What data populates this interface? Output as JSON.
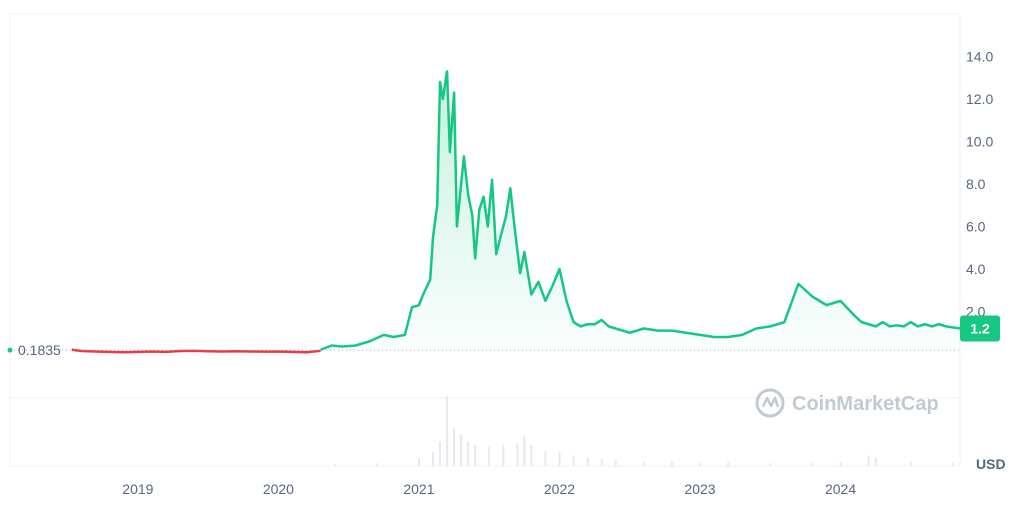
{
  "chart_data": {
    "type": "area",
    "currency": "USD",
    "baseline_label": "0.1835",
    "current_label": "1.2",
    "watermark": "CoinMarketCap",
    "ylim": [
      0,
      16
    ],
    "y_ticks": [
      "2.0",
      "4.0",
      "6.0",
      "8.0",
      "10.0",
      "12.0",
      "14.0"
    ],
    "y_tick_values": [
      2,
      4,
      6,
      8,
      10,
      12,
      14
    ],
    "x_ticks": [
      "2019",
      "2020",
      "2021",
      "2022",
      "2023",
      "2024"
    ],
    "x_tick_values": [
      2019,
      2020,
      2021,
      2022,
      2023,
      2024
    ],
    "xlim": [
      2018.09,
      2024.85
    ],
    "grid": true,
    "colors": {
      "up": "#16c784",
      "down": "#ea3943",
      "fill": "#16c784",
      "text": "#58667e",
      "grid": "#eff2f5",
      "volume": "#e6e9ee"
    },
    "series": [
      {
        "segment": "below-baseline",
        "x": [
          2018.53,
          2018.6,
          2018.7,
          2018.8,
          2018.9,
          2019.0,
          2019.1,
          2019.2,
          2019.3,
          2019.4,
          2019.5,
          2019.6,
          2019.7,
          2019.8,
          2019.9,
          2020.0,
          2020.1,
          2020.2,
          2020.3
        ],
        "values": [
          0.2,
          0.14,
          0.12,
          0.1,
          0.08,
          0.1,
          0.12,
          0.1,
          0.14,
          0.15,
          0.13,
          0.12,
          0.13,
          0.12,
          0.11,
          0.12,
          0.1,
          0.08,
          0.15
        ]
      },
      {
        "segment": "above-baseline",
        "x": [
          2020.3,
          2020.38,
          2020.45,
          2020.55,
          2020.65,
          2020.75,
          2020.82,
          2020.9,
          2020.95,
          2021.0,
          2021.03,
          2021.08,
          2021.1,
          2021.13,
          2021.15,
          2021.17,
          2021.2,
          2021.22,
          2021.25,
          2021.27,
          2021.3,
          2021.32,
          2021.35,
          2021.38,
          2021.4,
          2021.43,
          2021.46,
          2021.49,
          2021.52,
          2021.55,
          2021.58,
          2021.62,
          2021.65,
          2021.68,
          2021.72,
          2021.75,
          2021.8,
          2021.85,
          2021.9,
          2021.95,
          2022.0,
          2022.05,
          2022.1,
          2022.15,
          2022.2,
          2022.25,
          2022.3,
          2022.35,
          2022.4,
          2022.5,
          2022.6,
          2022.7,
          2022.8,
          2022.9,
          2023.0,
          2023.1,
          2023.2,
          2023.3,
          2023.4,
          2023.5,
          2023.6,
          2023.7,
          2023.8,
          2023.9,
          2024.0,
          2024.1,
          2024.15,
          2024.2,
          2024.25,
          2024.3,
          2024.35,
          2024.4,
          2024.45,
          2024.5,
          2024.55,
          2024.6,
          2024.65,
          2024.7,
          2024.75,
          2024.8,
          2024.85
        ],
        "values": [
          0.2,
          0.4,
          0.35,
          0.4,
          0.6,
          0.9,
          0.8,
          0.9,
          2.2,
          2.3,
          2.8,
          3.5,
          5.5,
          7.0,
          12.8,
          12.0,
          13.3,
          9.5,
          12.3,
          6.0,
          8.0,
          9.3,
          7.5,
          6.5,
          4.5,
          6.8,
          7.4,
          6.0,
          8.2,
          4.7,
          5.5,
          6.5,
          7.8,
          6.0,
          3.8,
          4.8,
          2.8,
          3.4,
          2.5,
          3.2,
          4.0,
          2.5,
          1.5,
          1.3,
          1.4,
          1.4,
          1.6,
          1.3,
          1.2,
          1.0,
          1.2,
          1.1,
          1.1,
          1.0,
          0.9,
          0.8,
          0.8,
          0.9,
          1.2,
          1.3,
          1.5,
          3.3,
          2.7,
          2.3,
          2.5,
          1.8,
          1.5,
          1.4,
          1.3,
          1.5,
          1.3,
          1.35,
          1.3,
          1.5,
          1.3,
          1.4,
          1.3,
          1.4,
          1.3,
          1.25,
          1.2
        ]
      }
    ],
    "volume": {
      "x": [
        2020.4,
        2020.7,
        2021.0,
        2021.1,
        2021.15,
        2021.2,
        2021.25,
        2021.3,
        2021.35,
        2021.4,
        2021.5,
        2021.6,
        2021.7,
        2021.75,
        2021.8,
        2021.9,
        2022.0,
        2022.1,
        2022.2,
        2022.3,
        2022.4,
        2022.6,
        2022.8,
        2023.0,
        2023.2,
        2023.5,
        2023.8,
        2024.0,
        2024.2,
        2024.25,
        2024.5,
        2024.8
      ],
      "values": [
        0.03,
        0.04,
        0.12,
        0.2,
        0.35,
        1.0,
        0.55,
        0.45,
        0.35,
        0.3,
        0.28,
        0.3,
        0.32,
        0.42,
        0.3,
        0.22,
        0.2,
        0.15,
        0.12,
        0.1,
        0.08,
        0.06,
        0.06,
        0.05,
        0.05,
        0.04,
        0.05,
        0.06,
        0.15,
        0.12,
        0.06,
        0.05
      ]
    }
  }
}
